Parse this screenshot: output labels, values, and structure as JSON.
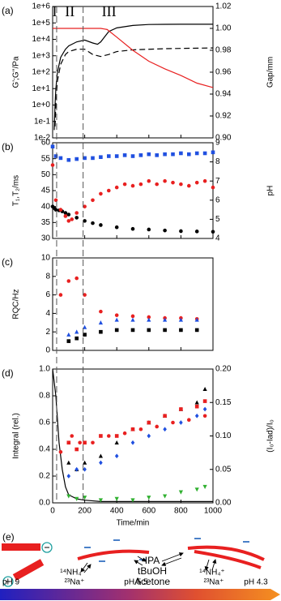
{
  "chart_data": [
    {
      "type": "line",
      "panel": "(a)",
      "y_label": "G';G''/Pa",
      "y2_label": "Gap/mm",
      "xlim": [
        0,
        1000
      ],
      "xticks": [
        0,
        200,
        400,
        600,
        800,
        1000
      ],
      "ylog": true,
      "ylim": [
        0.01,
        1000000
      ],
      "yticks": [
        {
          "value": 0.01,
          "label": "1e-2"
        },
        {
          "value": 0.1,
          "label": "1e-1"
        },
        {
          "value": 1,
          "label": "1e+0"
        },
        {
          "value": 10,
          "label": "1e+1"
        },
        {
          "value": 100,
          "label": "1e+2"
        },
        {
          "value": 1000,
          "label": "1e+3"
        },
        {
          "value": 10000,
          "label": "1e+4"
        },
        {
          "value": 100000,
          "label": "1e+5"
        },
        {
          "value": 1000000,
          "label": "1e+6"
        }
      ],
      "y2lim": [
        0.9,
        1.02
      ],
      "y2ticks": [
        {
          "value": 0.9,
          "label": "0.90"
        },
        {
          "value": 0.92,
          "label": "0.92"
        },
        {
          "value": 0.94,
          "label": "0.94"
        },
        {
          "value": 0.96,
          "label": "0.96"
        },
        {
          "value": 0.98,
          "label": "0.98"
        },
        {
          "value": 1.0,
          "label": "1.00"
        },
        {
          "value": 1.02,
          "label": "1.02"
        }
      ],
      "regions": {
        "labels": [
          "I",
          "II",
          "III"
        ],
        "boundaries": [
          25,
          190
        ]
      },
      "series": [
        {
          "color": "#000000",
          "dash": "solid",
          "x": [
            10,
            15,
            20,
            30,
            50,
            80,
            100,
            150,
            200,
            250,
            280,
            300,
            350,
            400,
            500,
            600,
            700,
            800,
            1000
          ],
          "values": [
            0.03,
            1,
            10,
            100,
            800,
            2500,
            4000,
            7000,
            9000,
            6000,
            5000,
            7000,
            30000,
            50000,
            70000,
            80000,
            82000,
            83000,
            83000
          ]
        },
        {
          "color": "#000000",
          "dash": "dashed",
          "x": [
            15,
            20,
            30,
            50,
            80,
            100,
            150,
            200,
            250,
            300,
            350,
            400,
            500,
            700,
            1000
          ],
          "values": [
            0.05,
            1,
            30,
            300,
            1200,
            1800,
            2500,
            2500,
            1200,
            900,
            1200,
            1800,
            2300,
            2700,
            3000
          ]
        },
        {
          "color": "#e82020",
          "dash": "solid",
          "axis": "y2",
          "x": [
            0,
            100,
            200,
            300,
            340,
            400,
            500,
            600,
            700,
            800,
            900,
            1000
          ],
          "values": [
            1.0,
            1.0,
            1.0,
            1.0,
            0.999,
            0.992,
            0.98,
            0.97,
            0.963,
            0.957,
            0.95,
            0.946
          ]
        }
      ]
    },
    {
      "type": "scatter",
      "panel": "(b)",
      "y_label": "T₁,T₂/ms",
      "y2_label": "pH",
      "xlim": [
        0,
        1000
      ],
      "xticks": [
        0,
        200,
        400,
        600,
        800,
        1000
      ],
      "ylim": [
        30,
        60
      ],
      "yticks": [
        30,
        35,
        40,
        45,
        50,
        55,
        60
      ],
      "y2lim": [
        4,
        9
      ],
      "y2ticks": [
        4,
        5,
        6,
        7,
        8,
        9
      ],
      "series": [
        {
          "color": "#000000",
          "marker": "circle",
          "x": [
            0,
            10,
            20,
            40,
            60,
            80,
            100,
            150,
            200,
            250,
            300,
            400,
            500,
            600,
            700,
            800,
            900,
            1000
          ],
          "values": [
            40,
            39.5,
            39,
            38.8,
            38.5,
            38,
            37.5,
            36.5,
            35.5,
            34.8,
            34.2,
            33.5,
            33,
            32.8,
            32.5,
            32.3,
            32.2,
            32.1
          ]
        },
        {
          "color": "#e82020",
          "marker": "circle",
          "x": [
            0,
            20,
            50,
            80,
            100,
            120,
            150,
            200,
            250,
            300,
            350,
            400,
            450,
            500,
            550,
            600,
            650,
            700,
            750,
            800,
            850,
            900,
            950,
            1000
          ],
          "values": [
            53,
            42,
            39,
            37,
            35.5,
            36,
            38,
            40,
            42,
            44,
            45,
            46,
            47,
            46.5,
            47,
            48,
            47,
            48,
            47.5,
            47,
            46.5,
            47.5,
            48,
            46
          ]
        },
        {
          "color": "#2050e0",
          "marker": "square",
          "axis": "y2",
          "x": [
            0,
            20,
            50,
            100,
            150,
            200,
            250,
            300,
            350,
            400,
            450,
            500,
            550,
            600,
            650,
            700,
            750,
            800,
            850,
            900,
            950,
            1000
          ],
          "values": [
            8.8,
            8.3,
            8.2,
            8.1,
            8.15,
            8.2,
            8.2,
            8.25,
            8.3,
            8.3,
            8.35,
            8.3,
            8.35,
            8.4,
            8.35,
            8.4,
            8.4,
            8.45,
            8.4,
            8.45,
            8.45,
            8.5
          ]
        }
      ]
    },
    {
      "type": "scatter",
      "panel": "(c)",
      "y_label": "RQC/Hz",
      "xlim": [
        0,
        1000
      ],
      "xticks": [
        0,
        200,
        400,
        600,
        800,
        1000
      ],
      "ylim": [
        0,
        10
      ],
      "yticks": [
        0,
        2,
        4,
        6,
        8,
        10
      ],
      "series": [
        {
          "color": "#e82020",
          "marker": "circle",
          "x": [
            50,
            100,
            150,
            200,
            300,
            400,
            500,
            600,
            700,
            800,
            900
          ],
          "values": [
            6,
            7.5,
            7.8,
            6,
            4.2,
            3.8,
            3.7,
            3.6,
            3.5,
            3.5,
            3.4
          ]
        },
        {
          "color": "#2050e0",
          "marker": "triangle",
          "x": [
            100,
            150,
            200,
            300,
            400,
            500,
            600,
            700,
            800,
            900
          ],
          "values": [
            1.7,
            2,
            2.5,
            3,
            3.3,
            3.3,
            3.3,
            3.3,
            3.3,
            3.3
          ]
        },
        {
          "color": "#000000",
          "marker": "square",
          "x": [
            100,
            150,
            200,
            300,
            400,
            500,
            600,
            700,
            800,
            900
          ],
          "values": [
            1,
            1.3,
            1.7,
            2,
            2.2,
            2.2,
            2.2,
            2.2,
            2.2,
            2.2
          ]
        }
      ]
    },
    {
      "type": "scatter",
      "panel": "(d)",
      "y_label": "Integral (rel.)",
      "y2_label": "(I₀-Iad)/I₀",
      "x_label": "Time/min",
      "xlim": [
        0,
        1000
      ],
      "xticks": [
        0,
        200,
        400,
        600,
        800,
        1000
      ],
      "ylim": [
        0,
        1
      ],
      "yticks": [
        {
          "value": 0,
          "label": "0.0"
        },
        {
          "value": 0.2,
          "label": "0.2"
        },
        {
          "value": 0.4,
          "label": "0.4"
        },
        {
          "value": 0.6,
          "label": "0.6"
        },
        {
          "value": 0.8,
          "label": "0.8"
        },
        {
          "value": 1,
          "label": "1.0"
        }
      ],
      "y2lim": [
        0,
        0.2
      ],
      "y2ticks": [
        {
          "value": 0,
          "label": "0.00"
        },
        {
          "value": 0.05,
          "label": "0.05"
        },
        {
          "value": 0.1,
          "label": "0.10"
        },
        {
          "value": 0.15,
          "label": "0.15"
        },
        {
          "value": 0.2,
          "label": "0.20"
        }
      ],
      "series": [
        {
          "type": "line",
          "color": "#000000",
          "dash": "solid",
          "x": [
            0,
            20,
            40,
            60,
            80,
            100,
            150,
            200,
            300,
            500,
            1000
          ],
          "values": [
            1.0,
            0.8,
            0.45,
            0.25,
            0.12,
            0.06,
            0.03,
            0.02,
            0.01,
            0.01,
            0.01
          ]
        },
        {
          "color": "#000000",
          "marker": "triangle",
          "x": [
            100,
            150,
            200,
            300,
            400,
            500,
            600,
            700,
            800,
            900,
            950
          ],
          "values": [
            0.3,
            0.25,
            0.3,
            0.35,
            0.45,
            0.55,
            0.6,
            0.65,
            0.7,
            0.75,
            0.85
          ]
        },
        {
          "color": "#e82020",
          "marker": "square",
          "x": [
            100,
            150,
            200,
            300,
            400,
            500,
            600,
            700,
            800,
            900,
            950
          ],
          "values": [
            0.45,
            0.4,
            0.45,
            0.5,
            0.5,
            0.55,
            0.6,
            0.65,
            0.7,
            0.72,
            0.76
          ]
        },
        {
          "color": "#e82020",
          "marker": "circle",
          "x": [
            50,
            120,
            170,
            250,
            350,
            450,
            550,
            650,
            750,
            850,
            950
          ],
          "values": [
            0.38,
            0.5,
            0.45,
            0.45,
            0.5,
            0.52,
            0.55,
            0.57,
            0.6,
            0.62,
            0.65
          ]
        },
        {
          "color": "#2050e0",
          "marker": "diamond",
          "x": [
            100,
            150,
            200,
            300,
            400,
            500,
            600,
            700,
            800,
            900,
            950
          ],
          "values": [
            0.2,
            0.25,
            0.25,
            0.3,
            0.35,
            0.45,
            0.5,
            0.55,
            0.6,
            0.65,
            0.7
          ]
        },
        {
          "color": "#30b030",
          "marker": "triangle-down",
          "x": [
            100,
            150,
            200,
            300,
            400,
            500,
            600,
            700,
            800,
            900,
            950
          ],
          "values": [
            0.05,
            0.03,
            0.04,
            0.02,
            0.03,
            0.02,
            0.04,
            0.05,
            0.08,
            0.1,
            0.12
          ]
        }
      ]
    }
  ],
  "diagram": {
    "label": "(e)",
    "solvents": [
      "IPA",
      "tBuOH",
      "Acetone"
    ],
    "ions_left": [
      "¹⁴NH₄⁺",
      "²³Na⁺"
    ],
    "ions_right": [
      "¹⁴NH₄⁺",
      "²³Na⁺"
    ],
    "ph_labels": [
      "pH 9",
      "pH 5.5",
      "pH 4.3"
    ]
  }
}
